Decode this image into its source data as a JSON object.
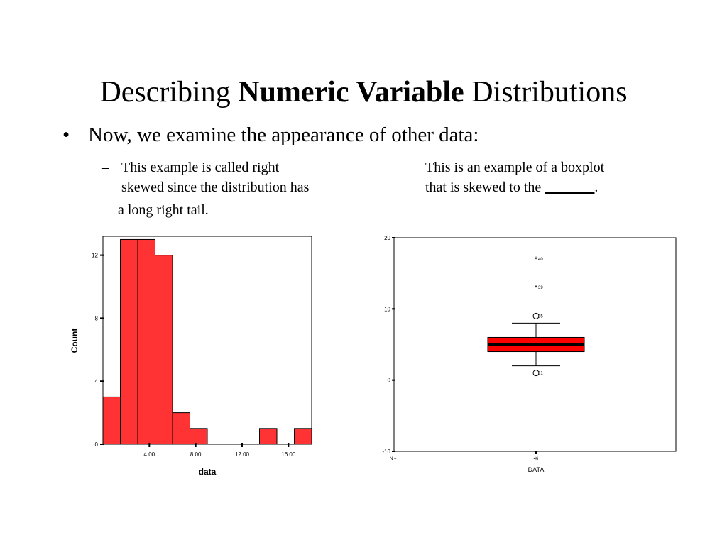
{
  "slide": {
    "title_pre": "Describing ",
    "title_bold": "Numeric Variable",
    "title_post": " Distributions",
    "bullet_marker": "•",
    "bullet_text": "Now, we examine the appearance of other data:",
    "left_dash": "–",
    "left_line1": "This example is called right",
    "left_line2": "skewed since the distribution has",
    "left_line3": "a long right tail.",
    "right_line1": "This is an example of a boxplot",
    "right_line2_pre": "that is skewed to the ",
    "right_blank": "_______",
    "right_line2_post": "."
  },
  "chart_data": [
    {
      "type": "bar",
      "subtype": "histogram",
      "ylabel": "Count",
      "xlabel": "data",
      "bar_color": "#ff3333",
      "bins": [
        {
          "from": 0,
          "to": 1.5,
          "count": 3
        },
        {
          "from": 1.5,
          "to": 3,
          "count": 13
        },
        {
          "from": 3,
          "to": 4.5,
          "count": 13
        },
        {
          "from": 4.5,
          "to": 6,
          "count": 12
        },
        {
          "from": 6,
          "to": 7.5,
          "count": 2
        },
        {
          "from": 7.5,
          "to": 9,
          "count": 1
        },
        {
          "from": 13.5,
          "to": 15,
          "count": 1
        },
        {
          "from": 16.5,
          "to": 18,
          "count": 1
        }
      ],
      "xlim": [
        0,
        18
      ],
      "ylim": [
        0,
        13.2
      ],
      "xticks": [
        4,
        8,
        12,
        16
      ],
      "xtick_labels": [
        "4.00",
        "8.00",
        "12.00",
        "16.00"
      ],
      "yticks": [
        0,
        4,
        8,
        12
      ],
      "ytick_labels": [
        "0",
        "4",
        "8",
        "12"
      ]
    },
    {
      "type": "boxplot",
      "xlabel": "DATA",
      "n_label": "N =",
      "n_value": "46",
      "box_color": "#ff0000",
      "q1": 4,
      "median": 5,
      "q3": 6,
      "whisker_low": 2,
      "whisker_high": 8,
      "outliers": [
        {
          "value": 1,
          "label": "31",
          "marker": "circle"
        },
        {
          "value": 9,
          "label": "35",
          "marker": "circle"
        },
        {
          "value": 13,
          "label": "39",
          "marker": "star"
        },
        {
          "value": 17,
          "label": "40",
          "marker": "star"
        }
      ],
      "ylim": [
        -10,
        20
      ],
      "yticks": [
        -10,
        0,
        10,
        20
      ],
      "ytick_labels": [
        "-10",
        "0",
        "10",
        "20"
      ]
    }
  ]
}
